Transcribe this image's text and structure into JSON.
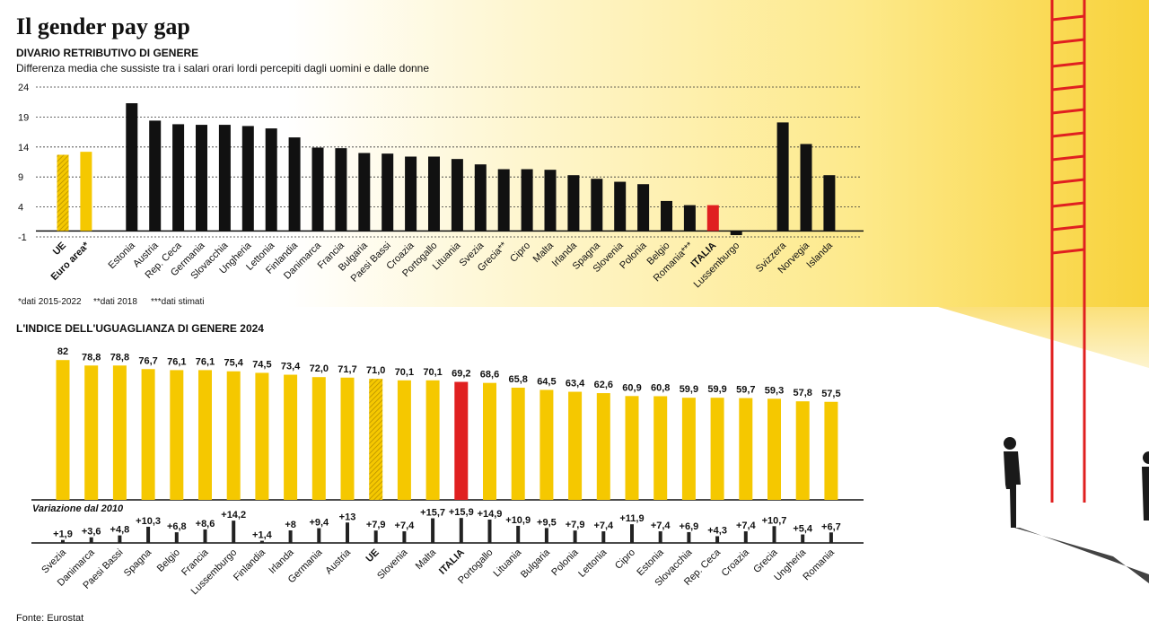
{
  "title": "Il gender pay gap",
  "source": "Fonte: Eurostat",
  "chart_data": [
    {
      "type": "bar",
      "title": "DIVARIO RETRIBUTIVO DI GENERE",
      "subtitle": "Differenza media che sussiste tra i salari orari lordi percepiti dagli uomini e dalle donne",
      "categories": [
        "UE",
        "Euro area*",
        "Estonia",
        "Austria",
        "Rep. Ceca",
        "Germania",
        "Slovacchia",
        "Ungheria",
        "Lettonia",
        "Finlandia",
        "Danimarca",
        "Francia",
        "Bulgaria",
        "Paesi Bassi",
        "Croazia",
        "Portogallo",
        "Lituania",
        "Svezia",
        "Grecia**",
        "Cipro",
        "Malta",
        "Irlanda",
        "Spagna",
        "Slovenia",
        "Polonia",
        "Belgio",
        "Romania***",
        "ITALIA",
        "Lussemburgo",
        "Svizzera",
        "Norvegia",
        "Islanda"
      ],
      "values": [
        12.7,
        13.2,
        21.3,
        18.4,
        17.8,
        17.7,
        17.7,
        17.5,
        17.1,
        15.6,
        13.9,
        13.8,
        13.0,
        12.9,
        12.4,
        12.4,
        12.0,
        11.1,
        10.3,
        10.3,
        10.2,
        9.3,
        8.7,
        8.2,
        7.8,
        5.0,
        4.3,
        4.3,
        -0.7,
        18.1,
        14.5,
        9.3
      ],
      "colors": [
        "#f5c800",
        "#f5c800",
        "#111111",
        "#111111",
        "#111111",
        "#111111",
        "#111111",
        "#111111",
        "#111111",
        "#111111",
        "#111111",
        "#111111",
        "#111111",
        "#111111",
        "#111111",
        "#111111",
        "#111111",
        "#111111",
        "#111111",
        "#111111",
        "#111111",
        "#111111",
        "#111111",
        "#111111",
        "#111111",
        "#111111",
        "#111111",
        "#e02020",
        "#111111",
        "#111111",
        "#111111",
        "#111111"
      ],
      "hatched": [
        0
      ],
      "bold": [
        0,
        1,
        27
      ],
      "ylim": [
        -1,
        24
      ],
      "yticks": [
        -1,
        4,
        9,
        14,
        19,
        24
      ],
      "grid": true,
      "footnotes": [
        "*dati 2015-2022",
        "**dati 2018",
        "***dati stimati"
      ]
    },
    {
      "type": "bar",
      "title": "L'INDICE DELL'UGUAGLIANZA DI GENERE 2024",
      "categories": [
        "Svezia",
        "Danimarca",
        "Paesi Bassi",
        "Spagna",
        "Belgio",
        "Francia",
        "Lussemburgo",
        "Finlandia",
        "Irlanda",
        "Germania",
        "Austria",
        "UE",
        "Slovenia",
        "Malta",
        "ITALIA",
        "Portogallo",
        "Lituania",
        "Bulgaria",
        "Polonia",
        "Lettonia",
        "Cipro",
        "Estonia",
        "Slovacchia",
        "Rep. Ceca",
        "Croazia",
        "Grecia",
        "Ungheria",
        "Romania"
      ],
      "values": [
        82,
        78.8,
        78.8,
        76.7,
        76.1,
        76.1,
        75.4,
        74.5,
        73.4,
        72.0,
        71.7,
        71.0,
        70.1,
        70.1,
        69.2,
        68.6,
        65.8,
        64.5,
        63.4,
        62.6,
        60.9,
        60.8,
        59.9,
        59.9,
        59.7,
        59.3,
        57.8,
        57.5
      ],
      "value_labels": [
        "82",
        "78,8",
        "78,8",
        "76,7",
        "76,1",
        "76,1",
        "75,4",
        "74,5",
        "73,4",
        "72,0",
        "71,7",
        "71,0",
        "70,1",
        "70,1",
        "69,2",
        "68,6",
        "65,8",
        "64,5",
        "63,4",
        "62,6",
        "60,9",
        "60,8",
        "59,9",
        "59,9",
        "59,7",
        "59,3",
        "57,8",
        "57,5"
      ],
      "colors": [
        "#f5c800",
        "#f5c800",
        "#f5c800",
        "#f5c800",
        "#f5c800",
        "#f5c800",
        "#f5c800",
        "#f5c800",
        "#f5c800",
        "#f5c800",
        "#f5c800",
        "#f5c800",
        "#f5c800",
        "#f5c800",
        "#e02020",
        "#f5c800",
        "#f5c800",
        "#f5c800",
        "#f5c800",
        "#f5c800",
        "#f5c800",
        "#f5c800",
        "#f5c800",
        "#f5c800",
        "#f5c800",
        "#f5c800",
        "#f5c800",
        "#f5c800"
      ],
      "hatched": [
        11
      ],
      "bold": [
        11,
        14
      ],
      "change": {
        "title": "Variazione dal 2010",
        "values": [
          1.9,
          3.6,
          4.8,
          10.3,
          6.8,
          8.6,
          14.2,
          1.4,
          8,
          9.4,
          13,
          7.9,
          7.4,
          15.7,
          15.9,
          14.9,
          10.9,
          9.5,
          7.9,
          7.4,
          11.9,
          7.4,
          6.9,
          4.3,
          7.4,
          10.7,
          5.4,
          6.7
        ],
        "value_labels": [
          "+1,9",
          "+3,6",
          "+4,8",
          "+10,3",
          "+6,8",
          "+8,6",
          "+14,2",
          "+1,4",
          "+8",
          "+9,4",
          "+13",
          "+7,9",
          "+7,4",
          "+15,7",
          "+15,9",
          "+14,9",
          "+10,9",
          "+9,5",
          "+7,9",
          "+7,4",
          "+11,9",
          "+7,4",
          "+6,9",
          "+4,3",
          "+7,4",
          "+10,7",
          "+5,4",
          "+6,7"
        ],
        "color": "#222222"
      }
    }
  ]
}
